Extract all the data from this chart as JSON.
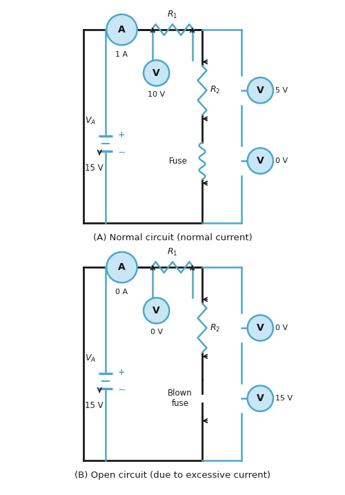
{
  "main_wire_color": "#1a1a1a",
  "blue_wire_color": "#4DA6C8",
  "text_color": "#1a1a1a",
  "bg_color": "#ffffff",
  "circle_fill": "#C8E6F5",
  "circle_edge": "#4DA6C8",
  "plus_minus_color": "#4DA6C8",
  "diagram_A": {
    "title": "(A) Normal circuit (normal current)",
    "ammeter_label": "1 A",
    "voltmeter_R1_label": "10 V",
    "voltmeter_R2_label": "5 V",
    "voltmeter_fuse_label": "0 V",
    "battery_label": "15 V",
    "fuse_label": "Fuse",
    "R1_label": "$R_1$",
    "R2_label": "$R_2$"
  },
  "diagram_B": {
    "title": "(B) Open circuit (due to excessive current)",
    "ammeter_label": "0 A",
    "voltmeter_R1_label": "0 V",
    "voltmeter_R2_label": "0 V",
    "voltmeter_fuse_label": "15 V",
    "battery_label": "15 V",
    "fuse_label": "Blown\nfuse",
    "R1_label": "$R_1$",
    "R2_label": "$R_2$"
  }
}
